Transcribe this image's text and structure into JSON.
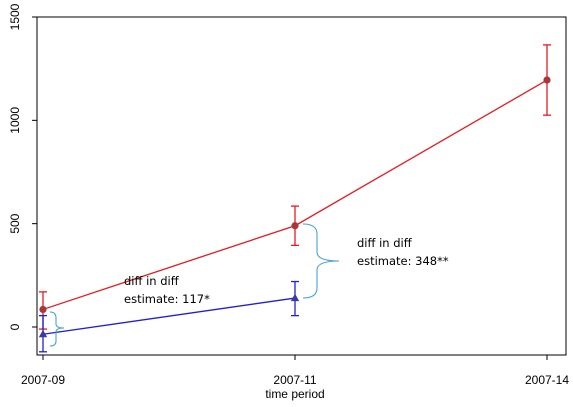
{
  "chart_data": {
    "type": "line",
    "x": [
      "2007-09",
      "2007-11",
      "2007-14"
    ],
    "xlabel": "time period",
    "ylabel": "",
    "ylim": [
      -100,
      1500
    ],
    "yticks": [
      0,
      500,
      1000,
      1500
    ],
    "grid": false,
    "legend": "none",
    "series": [
      {
        "color": "#e8191f",
        "marker": "circle",
        "marker_color": "#a8363b",
        "values": [
          85,
          490,
          1195
        ],
        "err_low": [
          -10,
          395,
          1025
        ],
        "err_high": [
          170,
          585,
          1365
        ]
      },
      {
        "color": "#1f1fd6",
        "marker": "triangle",
        "marker_color": "#3a3aa0",
        "values": [
          -35,
          140,
          null
        ],
        "err_low": [
          -120,
          55,
          null
        ],
        "err_high": [
          55,
          220,
          null
        ]
      }
    ],
    "annotations": [
      {
        "line1": "diff in diff",
        "line2": "estimate: 117*"
      },
      {
        "line1": "diff in diff",
        "line2": "estimate: 348**"
      }
    ],
    "brace_color": "#4aa3d4"
  }
}
